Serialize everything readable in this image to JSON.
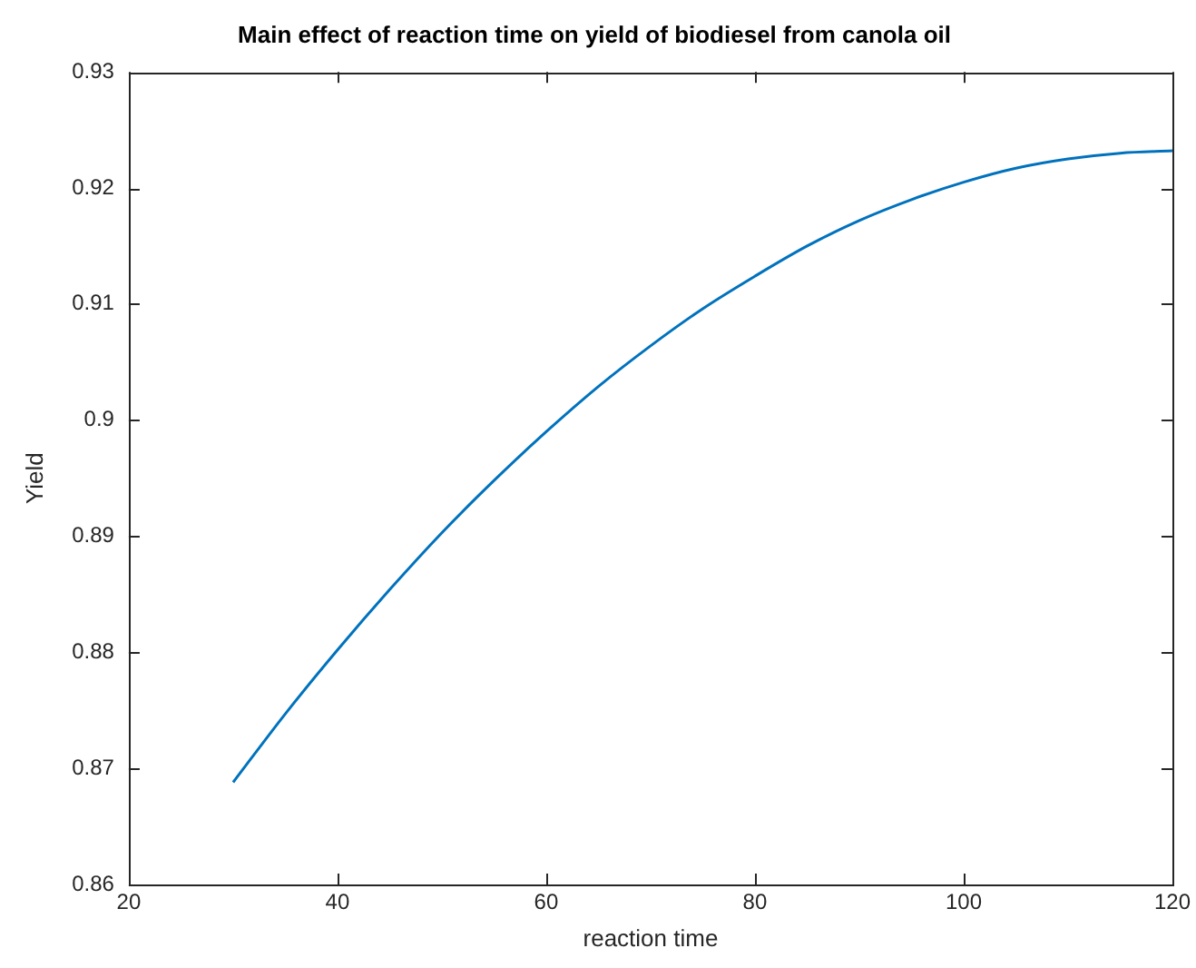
{
  "chart_data": {
    "type": "line",
    "title": "Main effect of reaction time on yield of biodiesel from canola oil",
    "xlabel": "reaction time",
    "ylabel": "Yield",
    "x": [
      30,
      35,
      40,
      45,
      50,
      55,
      60,
      65,
      70,
      75,
      80,
      85,
      90,
      95,
      100,
      105,
      110,
      115,
      120
    ],
    "series": [
      {
        "color": "#0072bd",
        "values": [
          0.8688,
          0.8747,
          0.8802,
          0.8854,
          0.8903,
          0.8948,
          0.899,
          0.9029,
          0.9064,
          0.9096,
          0.9124,
          0.915,
          0.9172,
          0.919,
          0.9205,
          0.9217,
          0.9225,
          0.923,
          0.9232
        ]
      }
    ],
    "xlim": [
      20,
      120
    ],
    "xticks": [
      20,
      40,
      60,
      80,
      100,
      120
    ],
    "ylim": [
      0.86,
      0.93
    ],
    "yticks": [
      0.86,
      0.87,
      0.88,
      0.89,
      0.9,
      0.91,
      0.92,
      0.93
    ],
    "grid": false,
    "legend": false,
    "marker": "none",
    "line_style": "solid"
  }
}
